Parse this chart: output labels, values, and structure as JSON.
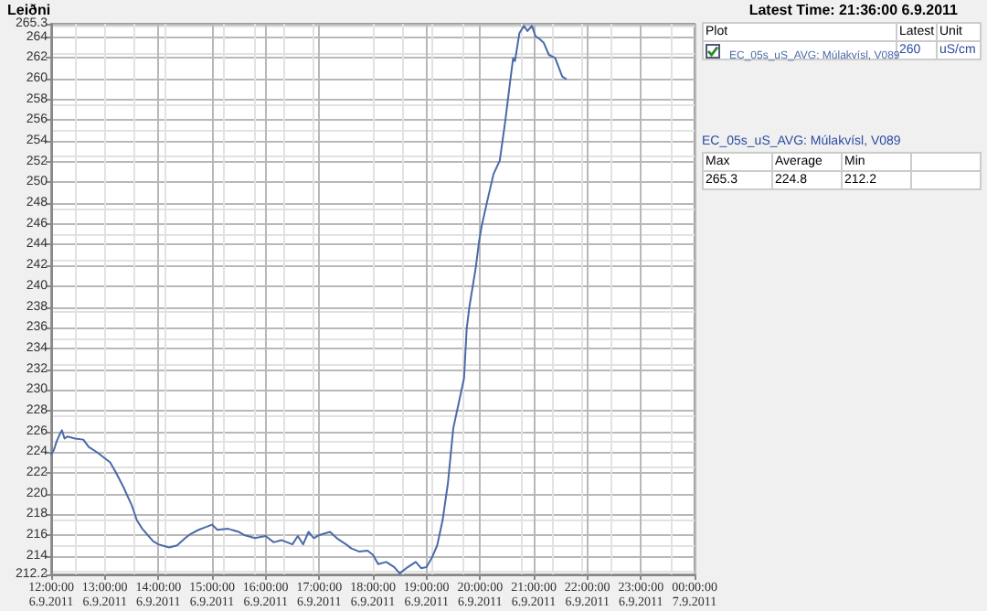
{
  "chart_data": {
    "type": "line",
    "ylabel": "Leiðni",
    "annotations": [
      "Latest Time: 21:36:00 6.9.2011",
      "Plot",
      "Latest",
      "Unit",
      "260",
      "uS/cm",
      "EC_05s_uS_AVG: Múlakvísl, V089",
      "Max",
      "Average",
      "Min",
      "265.3",
      "224.8",
      "212.2"
    ],
    "xlim": [
      "2011-09-06T12:00",
      "2011-09-07T00:00"
    ],
    "xticks": [
      {
        "value": "2011-09-06T12:00",
        "label": "12:00:00\n6.9.2011"
      },
      {
        "value": "2011-09-06T13:00",
        "label": "13:00:00\n6.9.2011"
      },
      {
        "value": "2011-09-06T14:00",
        "label": "14:00:00\n6.9.2011"
      },
      {
        "value": "2011-09-06T15:00",
        "label": "15:00:00\n6.9.2011"
      },
      {
        "value": "2011-09-06T16:00",
        "label": "16:00:00\n6.9.2011"
      },
      {
        "value": "2011-09-06T17:00",
        "label": "17:00:00\n6.9.2011"
      },
      {
        "value": "2011-09-06T18:00",
        "label": "18:00:00\n6.9.2011"
      },
      {
        "value": "2011-09-06T19:00",
        "label": "19:00:00\n6.9.2011"
      },
      {
        "value": "2011-09-06T20:00",
        "label": "20:00:00\n6.9.2011"
      },
      {
        "value": "2011-09-06T21:00",
        "label": "21:00:00\n6.9.2011"
      },
      {
        "value": "2011-09-06T22:00",
        "label": "22:00:00\n6.9.2011"
      },
      {
        "value": "2011-09-06T23:00",
        "label": "23:00:00\n6.9.2011"
      },
      {
        "value": "2011-09-07T00:00",
        "label": "00:00:00\n7.9.2011"
      }
    ],
    "ylim": [
      212.2,
      265.3
    ],
    "yticks": [
      212.2,
      214,
      216,
      218,
      220,
      222,
      224,
      226,
      228,
      230,
      232,
      234,
      236,
      238,
      240,
      242,
      244,
      246,
      248,
      250,
      252,
      254,
      256,
      258,
      260,
      262,
      264,
      265.3
    ],
    "grid": true,
    "legend": "top right",
    "marker": "none",
    "line_style": "solid",
    "series": [
      {
        "name": "EC_05s_uS_AVG: Múlakvísl, V089",
        "color": "#4a6aa8",
        "x": [
          "2011-09-06T12:00",
          "2011-09-06T12:03",
          "2011-09-06T12:06",
          "2011-09-06T12:09",
          "2011-09-06T12:12",
          "2011-09-06T12:15",
          "2011-09-06T12:18",
          "2011-09-06T12:27",
          "2011-09-06T12:36",
          "2011-09-06T12:42",
          "2011-09-06T12:51",
          "2011-09-06T13:00",
          "2011-09-06T13:06",
          "2011-09-06T13:12",
          "2011-09-06T13:21",
          "2011-09-06T13:30",
          "2011-09-06T13:36",
          "2011-09-06T13:42",
          "2011-09-06T13:48",
          "2011-09-06T13:54",
          "2011-09-06T14:00",
          "2011-09-06T14:12",
          "2011-09-06T14:21",
          "2011-09-06T14:30",
          "2011-09-06T14:36",
          "2011-09-06T14:45",
          "2011-09-06T14:54",
          "2011-09-06T15:00",
          "2011-09-06T15:06",
          "2011-09-06T15:18",
          "2011-09-06T15:30",
          "2011-09-06T15:36",
          "2011-09-06T15:48",
          "2011-09-06T16:00",
          "2011-09-06T16:09",
          "2011-09-06T16:18",
          "2011-09-06T16:30",
          "2011-09-06T16:36",
          "2011-09-06T16:42",
          "2011-09-06T16:48",
          "2011-09-06T16:54",
          "2011-09-06T17:00",
          "2011-09-06T17:12",
          "2011-09-06T17:21",
          "2011-09-06T17:30",
          "2011-09-06T17:36",
          "2011-09-06T17:45",
          "2011-09-06T17:54",
          "2011-09-06T18:00",
          "2011-09-06T18:06",
          "2011-09-06T18:15",
          "2011-09-06T18:24",
          "2011-09-06T18:30",
          "2011-09-06T18:39",
          "2011-09-06T18:48",
          "2011-09-06T18:54",
          "2011-09-06T19:00",
          "2011-09-06T19:06",
          "2011-09-06T19:12",
          "2011-09-06T19:18",
          "2011-09-06T19:24",
          "2011-09-06T19:30",
          "2011-09-06T19:36",
          "2011-09-06T19:42",
          "2011-09-06T19:45",
          "2011-09-06T19:48",
          "2011-09-06T19:55",
          "2011-09-06T19:59",
          "2011-09-06T20:02",
          "2011-09-06T20:08",
          "2011-09-06T20:15",
          "2011-09-06T20:22",
          "2011-09-06T20:28",
          "2011-09-06T20:34",
          "2011-09-06T20:37",
          "2011-09-06T20:39",
          "2011-09-06T20:44",
          "2011-09-06T20:49",
          "2011-09-06T20:53",
          "2011-09-06T20:58",
          "2011-09-06T21:02",
          "2011-09-06T21:07",
          "2011-09-06T21:11",
          "2011-09-06T21:17",
          "2011-09-06T21:24",
          "2011-09-06T21:32",
          "2011-09-06T21:36"
        ],
        "values": [
          223.8,
          224.2,
          225,
          225.6,
          226.1,
          225.3,
          225.5,
          225.3,
          225.2,
          224.5,
          224,
          223.4,
          223,
          222.1,
          220.6,
          218.9,
          217.4,
          216.6,
          216,
          215.4,
          215.1,
          214.8,
          215,
          215.7,
          216.1,
          216.5,
          216.8,
          217,
          216.5,
          216.6,
          216.3,
          216,
          215.7,
          215.9,
          215.3,
          215.5,
          215.1,
          215.9,
          215.1,
          216.3,
          215.7,
          216,
          216.3,
          215.6,
          215.1,
          214.7,
          214.4,
          214.5,
          214.1,
          213.2,
          213.4,
          212.9,
          212.3,
          212.9,
          213.4,
          212.8,
          212.9,
          213.8,
          215,
          217.4,
          221,
          226.3,
          228.7,
          231.1,
          235.9,
          238,
          241.7,
          244.4,
          245.9,
          248.2,
          250.8,
          252.1,
          255.8,
          260,
          262,
          261.7,
          264.4,
          265.1,
          264.6,
          265.1,
          264.1,
          263.8,
          263.5,
          262.3,
          262,
          260.2,
          260
        ]
      }
    ]
  }
}
